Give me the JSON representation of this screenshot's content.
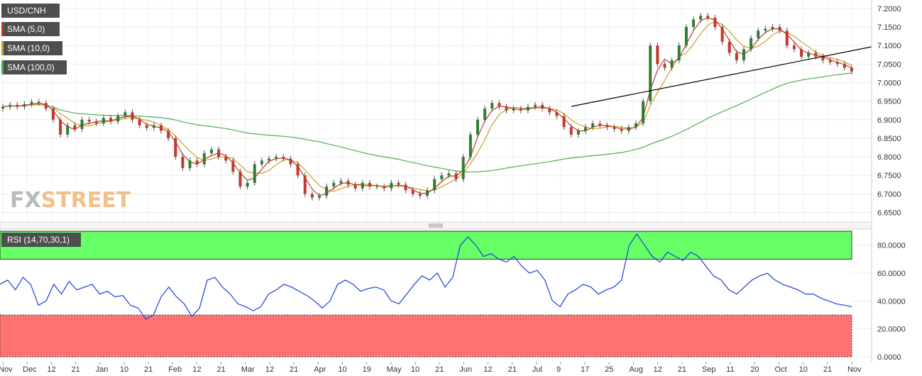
{
  "chart_data": [
    {
      "type": "candlestick",
      "title": "USD/CNH",
      "y_range": [
        6.63,
        7.215
      ],
      "y_ticks": [
        "7.2000",
        "7.1500",
        "7.1000",
        "7.0500",
        "7.0000",
        "6.9500",
        "6.9000",
        "6.8500",
        "6.8000",
        "6.7500",
        "6.7000",
        "6.6500"
      ],
      "x_ticks": [
        "Nov",
        "Dec",
        "12",
        "21",
        "Jan",
        "10",
        "21",
        "Feb",
        "12",
        "21",
        "Mar",
        "12",
        "21",
        "Apr",
        "10",
        "19",
        "May",
        "10",
        "21",
        "Jun",
        "12",
        "21",
        "Jul",
        "9",
        "17",
        "25",
        "Aug",
        "12",
        "21",
        "Sep",
        "11",
        "20",
        "Oct",
        "10",
        "21",
        "Nov"
      ],
      "legend": [
        {
          "label": "USD/CNH",
          "color": "#5a5a5a"
        },
        {
          "label": "SMA (5,0)",
          "color": "#c0392b"
        },
        {
          "label": "SMA (10,0)",
          "color": "#c9a227"
        },
        {
          "label": "SMA (100,0)",
          "color": "#4caf50"
        }
      ],
      "series": {
        "close": [
          6.935,
          6.94,
          6.935,
          6.942,
          6.948,
          6.945,
          6.93,
          6.9,
          6.86,
          6.885,
          6.875,
          6.9,
          6.895,
          6.89,
          6.905,
          6.895,
          6.91,
          6.92,
          6.9,
          6.885,
          6.878,
          6.885,
          6.87,
          6.85,
          6.8,
          6.77,
          6.79,
          6.78,
          6.81,
          6.82,
          6.8,
          6.79,
          6.76,
          6.72,
          6.73,
          6.78,
          6.79,
          6.795,
          6.8,
          6.795,
          6.78,
          6.75,
          6.7,
          6.69,
          6.695,
          6.72,
          6.73,
          6.735,
          6.725,
          6.715,
          6.73,
          6.72,
          6.72,
          6.715,
          6.73,
          6.725,
          6.71,
          6.7,
          6.695,
          6.71,
          6.74,
          6.75,
          6.755,
          6.74,
          6.8,
          6.86,
          6.9,
          6.93,
          6.945,
          6.935,
          6.925,
          6.93,
          6.925,
          6.935,
          6.94,
          6.93,
          6.92,
          6.91,
          6.88,
          6.86,
          6.87,
          6.88,
          6.89,
          6.885,
          6.88,
          6.875,
          6.87,
          6.88,
          6.89,
          6.95,
          7.1,
          7.05,
          7.04,
          7.06,
          7.1,
          7.15,
          7.17,
          7.18,
          7.175,
          7.15,
          7.11,
          7.08,
          7.06,
          7.09,
          7.12,
          7.14,
          7.145,
          7.15,
          7.14,
          7.1,
          7.09,
          7.07,
          7.08,
          7.07,
          7.06,
          7.055,
          7.05,
          7.04,
          7.03
        ],
        "sma5_color": "#c0392b",
        "sma10_color": "#c9a227",
        "sma100_color": "#4caf50",
        "trendline": {
          "color": "#000000"
        }
      }
    },
    {
      "type": "line",
      "title": "RSI (14,70,30,1)",
      "y_range": [
        0,
        90
      ],
      "y_ticks": [
        "80.0000",
        "60.0000",
        "40.0000",
        "20.0000",
        "0.0000"
      ],
      "overbought": 70,
      "oversold": 30,
      "overbought_color": "#66ff66",
      "oversold_color": "#ff7373",
      "line_color": "#1a3fd9",
      "values": [
        52,
        55,
        48,
        57,
        52,
        37,
        40,
        52,
        45,
        54,
        48,
        50,
        52,
        45,
        47,
        43,
        44,
        37,
        35,
        27,
        30,
        43,
        50,
        43,
        38,
        29,
        35,
        55,
        57,
        50,
        45,
        38,
        36,
        33,
        36,
        45,
        48,
        52,
        50,
        47,
        44,
        40,
        35,
        40,
        52,
        55,
        52,
        47,
        49,
        50,
        48,
        40,
        38,
        45,
        52,
        58,
        55,
        60,
        50,
        57,
        80,
        86,
        80,
        72,
        74,
        70,
        68,
        72,
        65,
        60,
        62,
        55,
        40,
        36,
        45,
        48,
        52,
        50,
        45,
        48,
        50,
        55,
        80,
        88,
        80,
        72,
        68,
        75,
        72,
        69,
        75,
        72,
        65,
        58,
        55,
        48,
        45,
        50,
        55,
        58,
        60,
        55,
        52,
        50,
        48,
        45,
        45,
        42,
        40,
        38,
        37,
        36
      ]
    }
  ]
}
